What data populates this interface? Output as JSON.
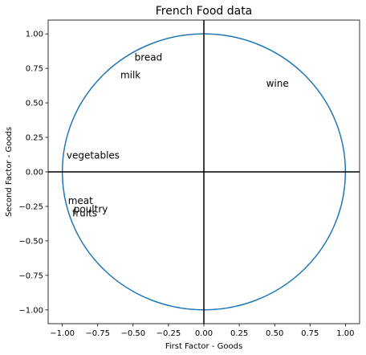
{
  "chart_data": {
    "type": "scatter",
    "title": "French Food data",
    "xlabel": "First Factor - Goods",
    "ylabel": "Second Factor - Goods",
    "xlim": [
      -1.1,
      1.1
    ],
    "ylim": [
      -1.1,
      1.1
    ],
    "xticks": [
      -1.0,
      -0.75,
      -0.5,
      -0.25,
      0.0,
      0.25,
      0.5,
      0.75,
      1.0
    ],
    "yticks": [
      -1.0,
      -0.75,
      -0.5,
      -0.25,
      0.0,
      0.25,
      0.5,
      0.75,
      1.0
    ],
    "xtick_labels": [
      "−1.00",
      "−0.75",
      "−0.50",
      "−0.25",
      "0.00",
      "0.25",
      "0.50",
      "0.75",
      "1.00"
    ],
    "ytick_labels": [
      "−1.00",
      "−0.75",
      "−0.50",
      "−0.25",
      "0.00",
      "0.25",
      "0.50",
      "0.75",
      "1.00"
    ],
    "grid": false,
    "circle": {
      "center": [
        0,
        0
      ],
      "radius": 1.0,
      "color": "#1f77b4"
    },
    "reference_lines": [
      {
        "axis": "x",
        "value": 0
      },
      {
        "axis": "y",
        "value": 0
      }
    ],
    "points": [
      {
        "label": "bread",
        "x": -0.49,
        "y": 0.83
      },
      {
        "label": "milk",
        "x": -0.59,
        "y": 0.7
      },
      {
        "label": "wine",
        "x": 0.44,
        "y": 0.64
      },
      {
        "label": "vegetables",
        "x": -0.97,
        "y": 0.12
      },
      {
        "label": "meat",
        "x": -0.96,
        "y": -0.21
      },
      {
        "label": "poultry",
        "x": -0.92,
        "y": -0.27
      },
      {
        "label": "fruits",
        "x": -0.93,
        "y": -0.3
      }
    ]
  }
}
